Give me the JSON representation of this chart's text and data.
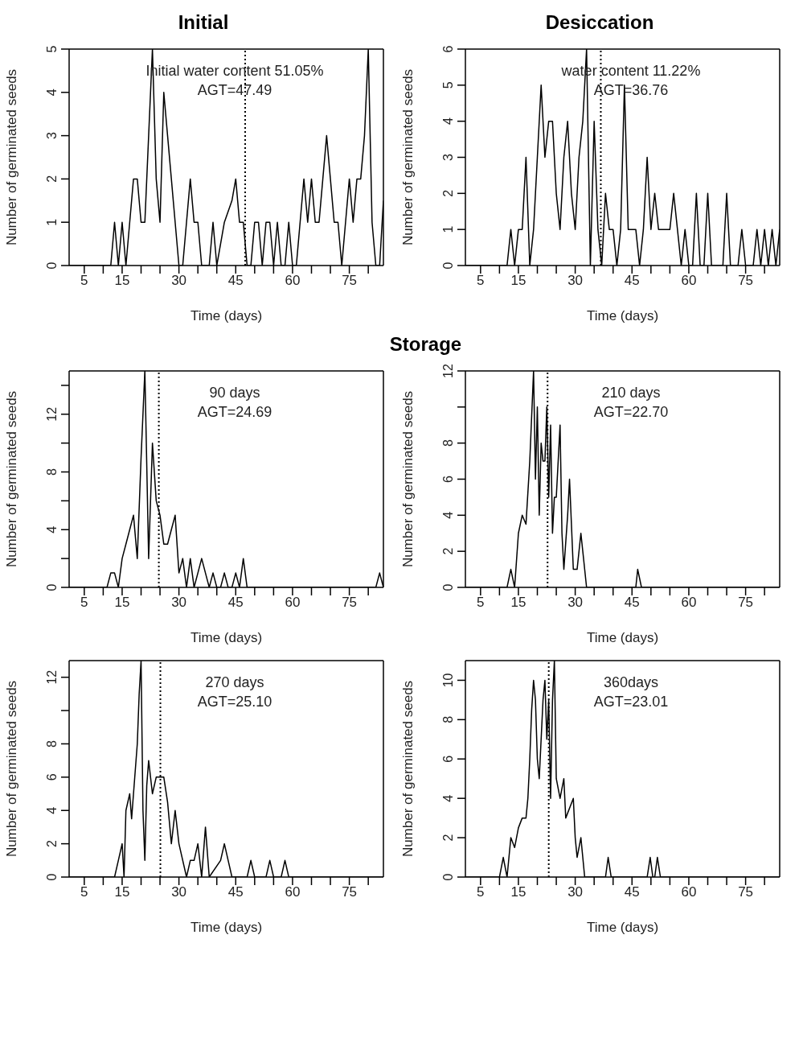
{
  "chart_data": [
    {
      "type": "line",
      "title": "Initial",
      "xlabel": "Time (days)",
      "ylabel": "Number of germinated seeds",
      "annotations": [
        "Initial water content 51.05%",
        "AGT=47.49"
      ],
      "xlim": [
        1,
        84
      ],
      "xticks": [
        5,
        {
          "value": 10,
          "label": null
        },
        15,
        {
          "value": 20,
          "label": null
        },
        {
          "value": 25,
          "label": null
        },
        30,
        {
          "value": 35,
          "label": null
        },
        {
          "value": 40,
          "label": null
        },
        45,
        {
          "value": 50,
          "label": null
        },
        {
          "value": 55,
          "label": null
        },
        60,
        {
          "value": 65,
          "label": null
        },
        {
          "value": 70,
          "label": null
        },
        75,
        {
          "value": 80,
          "label": null
        }
      ],
      "ylim": [
        0,
        5
      ],
      "yticks": [
        0,
        1,
        2,
        3,
        4,
        5
      ],
      "ref_lines": [
        {
          "axis": "x",
          "value": 47.49,
          "line_style": "dotted"
        }
      ],
      "x": [
        1,
        12,
        13,
        14,
        15,
        16,
        17,
        18,
        19,
        20,
        21,
        22,
        23,
        24,
        25,
        26,
        27,
        28,
        29,
        30,
        31,
        32,
        33,
        34,
        35,
        36,
        38,
        39,
        40,
        42,
        44,
        45,
        46,
        47,
        48,
        49,
        50,
        51,
        52,
        53,
        54,
        55,
        56,
        57,
        58,
        59,
        60,
        61,
        62,
        63,
        64,
        65,
        66,
        67,
        68,
        69,
        70,
        71,
        72,
        73,
        74,
        75,
        76,
        77,
        78,
        79,
        80,
        81,
        82,
        83,
        84
      ],
      "series": [
        {
          "color": "#000000",
          "values": [
            0,
            0,
            1,
            0,
            1,
            0,
            1,
            2,
            2,
            1,
            1,
            3,
            5,
            2,
            1,
            4,
            3,
            2,
            1,
            0,
            0,
            1,
            2,
            1,
            1,
            0,
            0,
            1,
            0,
            1,
            1.5,
            2,
            1,
            1,
            0,
            0,
            1,
            1,
            0,
            1,
            1,
            0,
            1,
            0,
            0,
            1,
            0,
            0,
            1,
            2,
            1,
            2,
            1,
            1,
            2,
            3,
            2,
            1,
            1,
            0,
            1,
            2,
            1,
            2,
            2,
            3,
            5,
            1,
            0,
            0,
            1.5
          ]
        }
      ]
    },
    {
      "type": "line",
      "title": "Desiccation",
      "xlabel": "Time (days)",
      "ylabel": "Number of germinated seeds",
      "annotations": [
        "water content 11.22%",
        "AGT=36.76"
      ],
      "xlim": [
        1,
        84
      ],
      "xticks": [
        5,
        {
          "value": 10,
          "label": null
        },
        15,
        {
          "value": 20,
          "label": null
        },
        {
          "value": 25,
          "label": null
        },
        30,
        {
          "value": 35,
          "label": null
        },
        {
          "value": 40,
          "label": null
        },
        45,
        {
          "value": 50,
          "label": null
        },
        {
          "value": 55,
          "label": null
        },
        60,
        {
          "value": 65,
          "label": null
        },
        {
          "value": 70,
          "label": null
        },
        75,
        {
          "value": 80,
          "label": null
        }
      ],
      "ylim": [
        0,
        6
      ],
      "yticks": [
        0,
        1,
        2,
        3,
        4,
        5,
        6
      ],
      "ref_lines": [
        {
          "axis": "x",
          "value": 36.76,
          "line_style": "dotted"
        }
      ],
      "x": [
        1,
        12,
        13,
        14,
        15,
        16,
        17,
        18,
        19,
        20,
        21,
        22,
        23,
        24,
        25,
        26,
        27,
        28,
        29,
        30,
        31,
        32,
        33,
        34,
        35,
        36,
        37,
        38,
        39,
        40,
        41,
        42,
        43,
        44,
        45,
        46,
        47,
        48,
        49,
        50,
        51,
        52,
        53,
        54,
        55,
        56,
        57,
        58,
        59,
        60,
        61,
        62,
        63,
        64,
        65,
        66,
        67,
        68,
        69,
        70,
        71,
        72,
        73,
        74,
        75,
        76,
        77,
        78,
        79,
        80,
        81,
        82,
        83,
        84
      ],
      "series": [
        {
          "color": "#000000",
          "values": [
            0,
            0,
            1,
            0,
            1,
            1,
            3,
            0,
            1,
            3,
            5,
            3,
            4,
            4,
            2,
            1,
            3,
            4,
            2,
            1,
            3,
            4,
            6,
            0,
            4,
            1,
            0,
            2,
            1,
            1,
            0,
            1,
            5,
            1,
            1,
            1,
            0,
            1,
            3,
            1,
            2,
            1,
            1,
            1,
            1,
            2,
            1,
            0,
            1,
            0,
            0,
            2,
            0,
            0,
            2,
            0,
            0,
            0,
            0,
            2,
            0,
            0,
            0,
            1,
            0,
            0,
            0,
            1,
            0,
            1,
            0,
            1,
            0,
            1
          ]
        }
      ]
    },
    {
      "type": "line",
      "title": "Storage",
      "xlabel": "Time (days)",
      "ylabel": "Number of germinated seeds",
      "annotations": [
        "90 days",
        "AGT=24.69"
      ],
      "xlim": [
        1,
        84
      ],
      "xticks": [
        5,
        {
          "value": 10,
          "label": null
        },
        15,
        {
          "value": 20,
          "label": null
        },
        {
          "value": 25,
          "label": null
        },
        30,
        {
          "value": 35,
          "label": null
        },
        {
          "value": 40,
          "label": null
        },
        45,
        {
          "value": 50,
          "label": null
        },
        {
          "value": 55,
          "label": null
        },
        60,
        {
          "value": 65,
          "label": null
        },
        {
          "value": 70,
          "label": null
        },
        75,
        {
          "value": 80,
          "label": null
        }
      ],
      "ylim": [
        0,
        15
      ],
      "yticks": [
        0,
        {
          "value": 2,
          "label": null
        },
        4,
        {
          "value": 6,
          "label": null
        },
        8,
        {
          "value": 10,
          "label": null
        },
        12,
        {
          "value": 14,
          "label": null
        }
      ],
      "ref_lines": [
        {
          "axis": "x",
          "value": 24.69,
          "line_style": "dotted"
        }
      ],
      "x": [
        1,
        11,
        12,
        13,
        14,
        15,
        16,
        17,
        18,
        19,
        20,
        21,
        22,
        23,
        24,
        25,
        26,
        27,
        28,
        29,
        30,
        31,
        32,
        33,
        34,
        35,
        36,
        37,
        38,
        39,
        40,
        41,
        42,
        43,
        44,
        45,
        46,
        47,
        48,
        82,
        83,
        84
      ],
      "series": [
        {
          "color": "#000000",
          "values": [
            0,
            0,
            1,
            1,
            0,
            2,
            3,
            4,
            5,
            2,
            9,
            15,
            2,
            10,
            6,
            5,
            3,
            3,
            4,
            5,
            1,
            2,
            0,
            2,
            0,
            1,
            2,
            1,
            0,
            1,
            0,
            0,
            1,
            0,
            0,
            1,
            0,
            2,
            0,
            0,
            1,
            0
          ]
        }
      ]
    },
    {
      "type": "line",
      "xlabel": "Time (days)",
      "ylabel": "Number of germinated seeds",
      "annotations": [
        "210 days",
        "AGT=22.70"
      ],
      "xlim": [
        1,
        84
      ],
      "xticks": [
        5,
        {
          "value": 10,
          "label": null
        },
        15,
        {
          "value": 20,
          "label": null
        },
        {
          "value": 25,
          "label": null
        },
        30,
        {
          "value": 35,
          "label": null
        },
        {
          "value": 40,
          "label": null
        },
        45,
        {
          "value": 50,
          "label": null
        },
        {
          "value": 55,
          "label": null
        },
        60,
        {
          "value": 65,
          "label": null
        },
        {
          "value": 70,
          "label": null
        },
        75,
        {
          "value": 80,
          "label": null
        }
      ],
      "ylim": [
        0,
        12
      ],
      "yticks": [
        0,
        2,
        4,
        6,
        8,
        {
          "value": 10,
          "label": null
        },
        12
      ],
      "ref_lines": [
        {
          "axis": "x",
          "value": 22.7,
          "line_style": "dotted"
        }
      ],
      "x": [
        1,
        12,
        13,
        14,
        15,
        16,
        17,
        18,
        19,
        19.5,
        20,
        20.5,
        21,
        21.5,
        22,
        22.5,
        23,
        23.5,
        24,
        24.5,
        25,
        26,
        26.5,
        27,
        28,
        28.5,
        29.5,
        30.5,
        31.5,
        32,
        33,
        46,
        46.5,
        47.5,
        84
      ],
      "series": [
        {
          "color": "#000000",
          "values": [
            0,
            0,
            1,
            0,
            3,
            4,
            3.5,
            7,
            12,
            6,
            10,
            4,
            8,
            7,
            7,
            10,
            5,
            9,
            3,
            5,
            5,
            9,
            3,
            1,
            4,
            6,
            1,
            1,
            3,
            2,
            0,
            0,
            1,
            0,
            0
          ]
        }
      ]
    },
    {
      "type": "line",
      "xlabel": "Time (days)",
      "ylabel": "Number of germinated seeds",
      "annotations": [
        "270 days",
        "AGT=25.10"
      ],
      "xlim": [
        1,
        84
      ],
      "xticks": [
        5,
        {
          "value": 10,
          "label": null
        },
        15,
        {
          "value": 20,
          "label": null
        },
        {
          "value": 25,
          "label": null
        },
        30,
        {
          "value": 35,
          "label": null
        },
        {
          "value": 40,
          "label": null
        },
        45,
        {
          "value": 50,
          "label": null
        },
        {
          "value": 55,
          "label": null
        },
        60,
        {
          "value": 65,
          "label": null
        },
        {
          "value": 70,
          "label": null
        },
        75,
        {
          "value": 80,
          "label": null
        }
      ],
      "ylim": [
        0,
        13
      ],
      "yticks": [
        0,
        2,
        4,
        6,
        8,
        {
          "value": 10,
          "label": null
        },
        12
      ],
      "ref_lines": [
        {
          "axis": "x",
          "value": 25.1,
          "line_style": "dotted"
        }
      ],
      "x": [
        1,
        13,
        14,
        15,
        15.5,
        16,
        17,
        17.5,
        18,
        19,
        19.5,
        20,
        20.5,
        21,
        21.5,
        22,
        23,
        24,
        26,
        27,
        28,
        29,
        30,
        32,
        33,
        34,
        35,
        36,
        37,
        38,
        41,
        42,
        43,
        44,
        48,
        49,
        50,
        53,
        54,
        55,
        57,
        58,
        59,
        84
      ],
      "series": [
        {
          "color": "#000000",
          "values": [
            0,
            0,
            1,
            2,
            0,
            4,
            5,
            3.5,
            5,
            8,
            11,
            13,
            4,
            1,
            5.5,
            7,
            5,
            6,
            6,
            4.5,
            2,
            4,
            2,
            0,
            1,
            1,
            2,
            0,
            3,
            0,
            1,
            2,
            1,
            0,
            0,
            1,
            0,
            0,
            1,
            0,
            0,
            1,
            0,
            0
          ]
        }
      ]
    },
    {
      "type": "line",
      "xlabel": "Time (days)",
      "ylabel": "Number of germinated seeds",
      "annotations": [
        "360days",
        "AGT=23.01"
      ],
      "xlim": [
        1,
        84
      ],
      "xticks": [
        5,
        {
          "value": 10,
          "label": null
        },
        15,
        {
          "value": 20,
          "label": null
        },
        {
          "value": 25,
          "label": null
        },
        30,
        {
          "value": 35,
          "label": null
        },
        {
          "value": 40,
          "label": null
        },
        45,
        {
          "value": 50,
          "label": null
        },
        {
          "value": 55,
          "label": null
        },
        60,
        {
          "value": 65,
          "label": null
        },
        {
          "value": 70,
          "label": null
        },
        75,
        {
          "value": 80,
          "label": null
        }
      ],
      "ylim": [
        0,
        11
      ],
      "yticks": [
        0,
        2,
        4,
        6,
        8,
        10
      ],
      "ref_lines": [
        {
          "axis": "x",
          "value": 23.01,
          "line_style": "dotted"
        }
      ],
      "x": [
        1,
        10,
        11,
        12,
        12.5,
        13,
        14,
        15,
        16,
        17,
        17.5,
        18,
        18.5,
        19,
        19.5,
        20,
        20.5,
        21.5,
        22,
        22.5,
        23,
        23.5,
        24,
        24.5,
        25,
        26,
        27,
        27.5,
        29.5,
        30,
        30.5,
        31.5,
        32.5,
        38,
        38.7,
        39.5,
        49,
        49.8,
        50.5,
        51,
        51.7,
        52.5,
        84
      ],
      "series": [
        {
          "color": "#000000",
          "values": [
            0,
            0,
            1,
            0,
            1,
            2,
            1.5,
            2.5,
            3,
            3,
            4,
            6,
            8.5,
            10,
            9,
            6,
            5,
            9,
            10,
            7,
            9,
            4,
            9,
            11,
            5,
            4,
            5,
            3,
            4,
            2,
            1,
            2,
            0,
            0,
            1,
            0,
            0,
            1,
            0,
            0,
            1,
            0,
            0
          ]
        }
      ]
    }
  ]
}
